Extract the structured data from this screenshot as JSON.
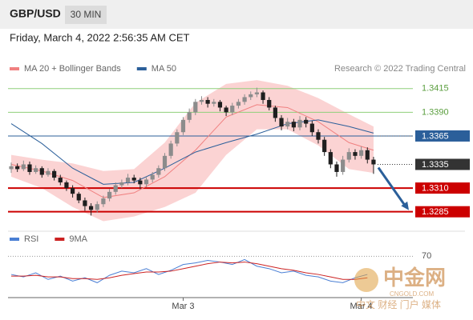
{
  "header": {
    "symbol": "GBP/USD",
    "interval": "30 MIN",
    "timestamp": "Friday, March 4, 2022 2:56:35 AM CET"
  },
  "chart_data": [
    {
      "type": "candlestick",
      "source": "Research © 2022 Trading Central",
      "up_color": "#8c8c8c",
      "down_color": "#1f1f1f",
      "ylim": [
        1.3267,
        1.343
      ],
      "ohlc": [
        [
          1.333,
          1.3337,
          1.3326,
          1.3333
        ],
        [
          1.3333,
          1.3336,
          1.3327,
          1.333
        ],
        [
          1.333,
          1.3339,
          1.3328,
          1.3335
        ],
        [
          1.3335,
          1.3338,
          1.3324,
          1.3327
        ],
        [
          1.3327,
          1.3334,
          1.3325,
          1.3331
        ],
        [
          1.3331,
          1.3333,
          1.3321,
          1.3324
        ],
        [
          1.3324,
          1.3331,
          1.3322,
          1.3328
        ],
        [
          1.3328,
          1.333,
          1.3318,
          1.3321
        ],
        [
          1.3321,
          1.3324,
          1.3313,
          1.3316
        ],
        [
          1.3316,
          1.3318,
          1.3307,
          1.331
        ],
        [
          1.331,
          1.3313,
          1.33,
          1.3304
        ],
        [
          1.3304,
          1.3306,
          1.3294,
          1.3297
        ],
        [
          1.3297,
          1.33,
          1.3286,
          1.3291
        ],
        [
          1.3291,
          1.3294,
          1.3281,
          1.3287
        ],
        [
          1.3287,
          1.3296,
          1.3284,
          1.3293
        ],
        [
          1.3293,
          1.3302,
          1.329,
          1.3299
        ],
        [
          1.3299,
          1.3309,
          1.3296,
          1.3306
        ],
        [
          1.3306,
          1.3316,
          1.3303,
          1.3313
        ],
        [
          1.3313,
          1.3319,
          1.331,
          1.3316
        ],
        [
          1.3316,
          1.3325,
          1.3313,
          1.3321
        ],
        [
          1.3321,
          1.3324,
          1.3315,
          1.3318
        ],
        [
          1.3318,
          1.3321,
          1.3309,
          1.3314
        ],
        [
          1.3314,
          1.3322,
          1.3311,
          1.3319
        ],
        [
          1.3319,
          1.3327,
          1.3316,
          1.3324
        ],
        [
          1.3324,
          1.3334,
          1.3321,
          1.3331
        ],
        [
          1.3331,
          1.3347,
          1.3328,
          1.3344
        ],
        [
          1.3344,
          1.336,
          1.3341,
          1.3357
        ],
        [
          1.3357,
          1.3372,
          1.3354,
          1.3369
        ],
        [
          1.3369,
          1.3385,
          1.3366,
          1.3382
        ],
        [
          1.3382,
          1.3394,
          1.3379,
          1.339
        ],
        [
          1.339,
          1.3404,
          1.3387,
          1.3401
        ],
        [
          1.3401,
          1.3407,
          1.3398,
          1.3403
        ],
        [
          1.3403,
          1.3406,
          1.3395,
          1.3399
        ],
        [
          1.3399,
          1.3404,
          1.3396,
          1.3401
        ],
        [
          1.3401,
          1.3403,
          1.3391,
          1.3395
        ],
        [
          1.3395,
          1.3397,
          1.3386,
          1.339
        ],
        [
          1.339,
          1.34,
          1.3387,
          1.3397
        ],
        [
          1.3397,
          1.3404,
          1.3394,
          1.3401
        ],
        [
          1.3401,
          1.3409,
          1.3398,
          1.3406
        ],
        [
          1.3406,
          1.3412,
          1.3403,
          1.3409
        ],
        [
          1.3409,
          1.3416,
          1.3406,
          1.3411
        ],
        [
          1.3411,
          1.3413,
          1.3399,
          1.3403
        ],
        [
          1.3403,
          1.3406,
          1.3392,
          1.3395
        ],
        [
          1.3395,
          1.3397,
          1.338,
          1.3384
        ],
        [
          1.3384,
          1.3387,
          1.3371,
          1.3375
        ],
        [
          1.3375,
          1.3384,
          1.3372,
          1.338
        ],
        [
          1.338,
          1.3383,
          1.337,
          1.3374
        ],
        [
          1.3374,
          1.3386,
          1.3371,
          1.3382
        ],
        [
          1.3382,
          1.3385,
          1.3374,
          1.3378
        ],
        [
          1.3378,
          1.3381,
          1.3365,
          1.3369
        ],
        [
          1.3369,
          1.3372,
          1.3357,
          1.3361
        ],
        [
          1.3361,
          1.3364,
          1.3344,
          1.3348
        ],
        [
          1.3348,
          1.3351,
          1.3331,
          1.3335
        ],
        [
          1.3335,
          1.3338,
          1.3322,
          1.3327
        ],
        [
          1.3327,
          1.3344,
          1.3324,
          1.334
        ],
        [
          1.334,
          1.3352,
          1.3337,
          1.3348
        ],
        [
          1.3348,
          1.3351,
          1.334,
          1.3344
        ],
        [
          1.3344,
          1.3354,
          1.3341,
          1.335
        ],
        [
          1.335,
          1.3353,
          1.3336,
          1.334
        ],
        [
          1.334,
          1.3343,
          1.3325,
          1.3335
        ]
      ],
      "series": [
        {
          "name": "MA 20 + Bollinger Bands",
          "color": "#f08080",
          "band_color": "#fbd3d3",
          "x": [
            0,
            5,
            10,
            15,
            20,
            25,
            30,
            35,
            40,
            45,
            50,
            55,
            59
          ],
          "values": [
            1.3335,
            1.3328,
            1.3318,
            1.33,
            1.3305,
            1.3322,
            1.335,
            1.3385,
            1.3398,
            1.3395,
            1.338,
            1.3358,
            1.335
          ],
          "upper": [
            1.3345,
            1.334,
            1.3336,
            1.3328,
            1.333,
            1.3358,
            1.34,
            1.342,
            1.3424,
            1.3418,
            1.3405,
            1.3388,
            1.3375
          ],
          "lower": [
            1.3322,
            1.331,
            1.329,
            1.3275,
            1.328,
            1.329,
            1.3305,
            1.3345,
            1.3372,
            1.3372,
            1.3355,
            1.333,
            1.3326
          ]
        },
        {
          "name": "MA 50",
          "color": "#2b5f9a",
          "x": [
            0,
            5,
            10,
            15,
            20,
            25,
            30,
            35,
            40,
            45,
            50,
            55,
            59
          ],
          "values": [
            1.3378,
            1.3357,
            1.3331,
            1.3314,
            1.3316,
            1.3331,
            1.3348,
            1.3358,
            1.3367,
            1.3378,
            1.3382,
            1.3375,
            1.3368
          ]
        }
      ],
      "levels": [
        {
          "value": 1.3415,
          "label": "1.3415",
          "color": "#8fcf7a",
          "line": "solid",
          "boxed": false
        },
        {
          "value": 1.339,
          "label": "1.3390",
          "color": "#8fcf7a",
          "line": "solid",
          "boxed": false
        },
        {
          "value": 1.3365,
          "label": "1.3365",
          "color": "#2b5f9a",
          "line": "solid",
          "boxed": true
        },
        {
          "value": 1.3335,
          "label": "1.3335",
          "color": "#333333",
          "line": "dotted",
          "boxed": true
        },
        {
          "value": 1.331,
          "label": "1.3310",
          "color": "#cc0000",
          "line": "solid",
          "boxed": true
        },
        {
          "value": 1.3285,
          "label": "1.3285",
          "color": "#cc0000",
          "line": "solid",
          "boxed": true
        }
      ],
      "arrow_color": "#2b5f9a",
      "xticks": [
        {
          "value": 28,
          "label": "Mar 3"
        },
        {
          "value": 57,
          "label": "Mar 4"
        }
      ]
    },
    {
      "type": "line",
      "ylim": [
        20,
        80
      ],
      "yticks": [
        70
      ],
      "series": [
        {
          "name": "RSI",
          "color": "#4a7fd4",
          "x": [
            0,
            2,
            4,
            6,
            8,
            10,
            12,
            14,
            16,
            18,
            20,
            22,
            24,
            26,
            28,
            30,
            32,
            34,
            36,
            38,
            40,
            42,
            44,
            46,
            48,
            50,
            52,
            54,
            56,
            58
          ],
          "values": [
            48,
            45,
            50,
            42,
            46,
            40,
            44,
            38,
            47,
            52,
            50,
            55,
            48,
            53,
            60,
            62,
            65,
            63,
            60,
            66,
            58,
            55,
            50,
            52,
            47,
            45,
            40,
            38,
            44,
            48
          ]
        },
        {
          "name": "9MA",
          "color": "#cc2222",
          "x": [
            0,
            2,
            4,
            6,
            8,
            10,
            12,
            14,
            16,
            18,
            20,
            22,
            24,
            26,
            28,
            30,
            32,
            34,
            36,
            38,
            40,
            42,
            44,
            46,
            48,
            50,
            52,
            54,
            56,
            58
          ],
          "values": [
            46,
            46,
            47,
            45,
            45,
            43,
            43,
            42,
            44,
            47,
            49,
            51,
            51,
            52,
            55,
            58,
            61,
            63,
            62,
            63,
            61,
            58,
            55,
            53,
            50,
            48,
            45,
            42,
            42,
            44
          ]
        }
      ]
    }
  ],
  "watermark": {
    "name": "中金网",
    "site": "CNGOLD.COM",
    "slogan": "中文 财经 门户 媒体"
  }
}
